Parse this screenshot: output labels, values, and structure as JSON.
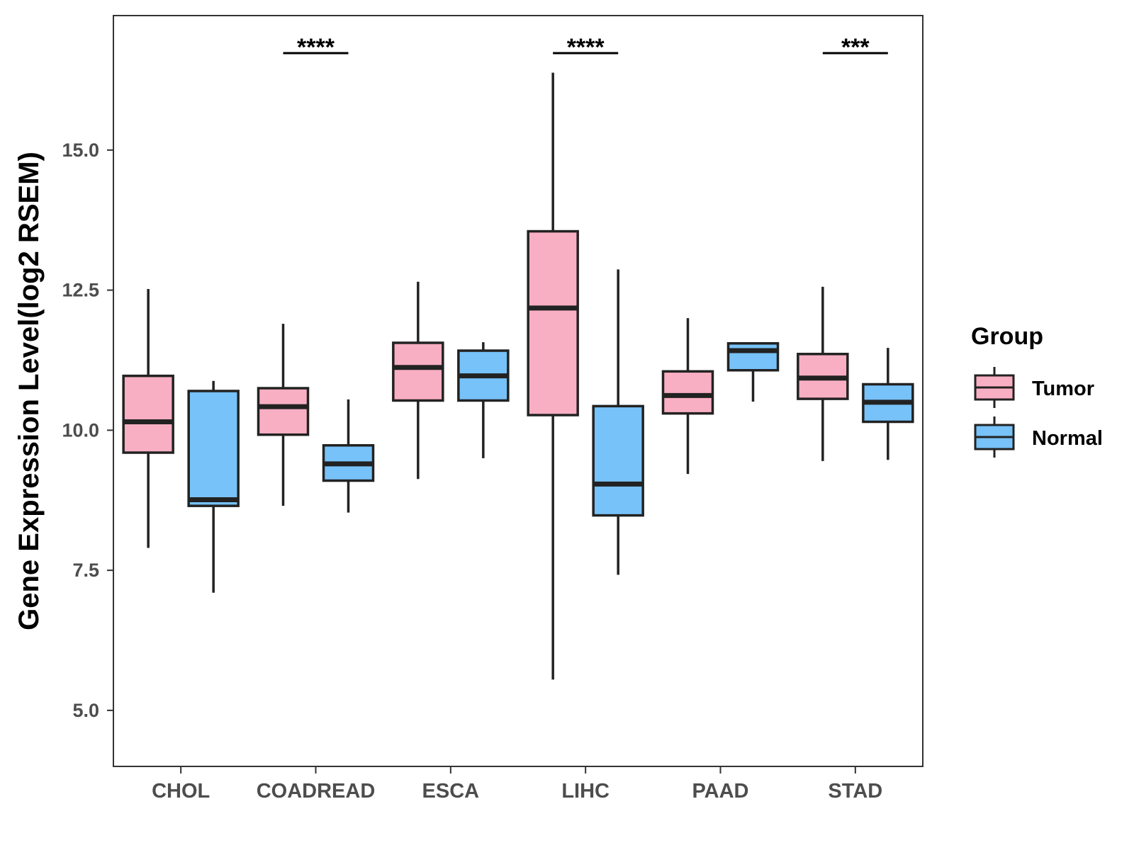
{
  "chart_data": {
    "type": "boxplot",
    "title": "",
    "xlabel": "",
    "ylabel": "Gene Expression Level(log2 RSEM)",
    "ylim": [
      4.0,
      17.4
    ],
    "yticks": [
      5.0,
      7.5,
      10.0,
      12.5,
      15.0
    ],
    "ytick_labels": [
      "5.0",
      "7.5",
      "10.0",
      "12.5",
      "15.0"
    ],
    "grid": false,
    "categories": [
      "CHOL",
      "COADREAD",
      "ESCA",
      "LIHC",
      "PAAD",
      "STAD"
    ],
    "legend": {
      "title": "Group",
      "position": "right",
      "entries": [
        "Tumor",
        "Normal"
      ]
    },
    "series": [
      {
        "name": "Tumor",
        "color": "#F9AFC3",
        "boxes": [
          {
            "whisker_low": 7.9,
            "q1": 9.6,
            "median": 10.15,
            "q3": 10.97,
            "whisker_high": 12.52
          },
          {
            "whisker_low": 8.65,
            "q1": 9.92,
            "median": 10.42,
            "q3": 10.75,
            "whisker_high": 11.9
          },
          {
            "whisker_low": 9.13,
            "q1": 10.53,
            "median": 11.12,
            "q3": 11.56,
            "whisker_high": 12.65
          },
          {
            "whisker_low": 5.55,
            "q1": 10.27,
            "median": 12.18,
            "q3": 13.55,
            "whisker_high": 16.38
          },
          {
            "whisker_low": 9.22,
            "q1": 10.3,
            "median": 10.62,
            "q3": 11.05,
            "whisker_high": 12.0
          },
          {
            "whisker_low": 9.45,
            "q1": 10.56,
            "median": 10.93,
            "q3": 11.36,
            "whisker_high": 12.56
          }
        ]
      },
      {
        "name": "Normal",
        "color": "#77C2F8",
        "boxes": [
          {
            "whisker_low": 7.1,
            "q1": 8.65,
            "median": 8.76,
            "q3": 10.7,
            "whisker_high": 10.88
          },
          {
            "whisker_low": 8.53,
            "q1": 9.1,
            "median": 9.4,
            "q3": 9.73,
            "whisker_high": 10.55
          },
          {
            "whisker_low": 9.5,
            "q1": 10.53,
            "median": 10.97,
            "q3": 11.42,
            "whisker_high": 11.57
          },
          {
            "whisker_low": 7.42,
            "q1": 8.48,
            "median": 9.04,
            "q3": 10.43,
            "whisker_high": 12.87
          },
          {
            "whisker_low": 10.51,
            "q1": 11.07,
            "median": 11.42,
            "q3": 11.55,
            "whisker_high": 11.55
          },
          {
            "whisker_low": 9.47,
            "q1": 10.15,
            "median": 10.5,
            "q3": 10.82,
            "whisker_high": 11.47
          }
        ]
      }
    ],
    "annotations": [
      {
        "category": "COADREAD",
        "label": "****"
      },
      {
        "category": "LIHC",
        "label": "****"
      },
      {
        "category": "STAD",
        "label": "***"
      }
    ]
  }
}
